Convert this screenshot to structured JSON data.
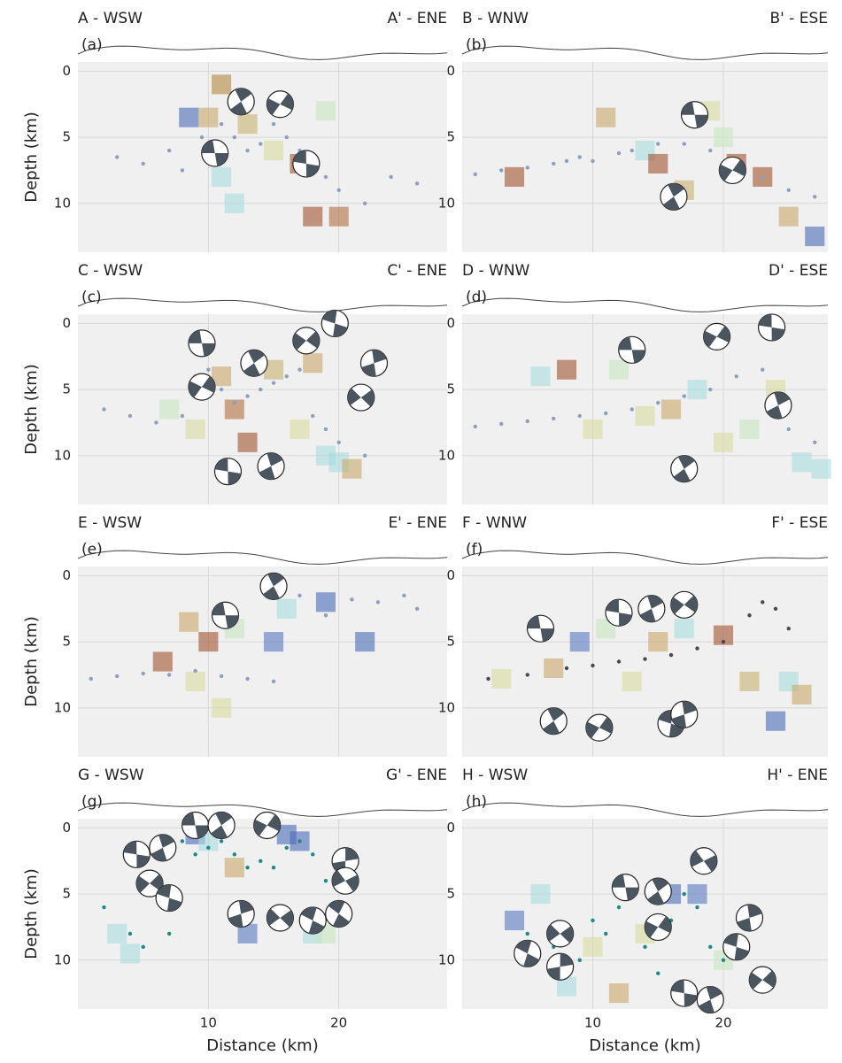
{
  "chart_data": [
    {
      "type": "scatter",
      "title_left": "A - WSW",
      "title_right": "A' - ENE",
      "panel_label": "(a)",
      "ylabel": "Depth (km)",
      "xlim": [
        0,
        28.3
      ],
      "ylim": [
        -0.7,
        13.7
      ],
      "y_inverted": true,
      "xticks": [
        10,
        20
      ],
      "yticks": [
        0,
        5,
        10
      ],
      "grid": true,
      "points": {
        "color": "#8aa0c0",
        "x": [
          3,
          5,
          7,
          8,
          9.5,
          11,
          12,
          13,
          14,
          15,
          16,
          17,
          18,
          19,
          20,
          22,
          24,
          26
        ],
        "y": [
          6.5,
          7,
          6,
          7.5,
          5,
          4,
          5,
          6,
          5.5,
          4,
          5,
          6,
          7,
          8,
          9,
          10,
          8,
          8.5
        ]
      },
      "cells": {
        "x": [
          8.5,
          10,
          11,
          13,
          15,
          17,
          18,
          20,
          12,
          11,
          19
        ],
        "y": [
          3.5,
          3.5,
          1,
          4,
          6,
          7,
          11,
          11,
          10,
          8,
          3
        ],
        "colors": [
          "#4a6ab8",
          "#c8a86a",
          "#b08840",
          "#c8b070",
          "#d8dca0",
          "#a0522d",
          "#a0522d",
          "#b07040",
          "#a8dce0",
          "#a8dce0",
          "#c8e6c0"
        ]
      },
      "mechanisms": {
        "x": [
          10.5,
          12.5,
          15.5,
          17.5
        ],
        "y": [
          6.2,
          2.3,
          2.5,
          7
        ]
      }
    },
    {
      "type": "scatter",
      "title_left": "B - WNW",
      "title_right": "B' - ESE",
      "panel_label": "(b)",
      "xlim": [
        0,
        28
      ],
      "ylim": [
        -0.7,
        13.7
      ],
      "y_inverted": true,
      "xticks": [
        10,
        20
      ],
      "yticks": [
        0,
        5,
        10
      ],
      "grid": true,
      "points": {
        "color": "#8aa0c0",
        "x": [
          1,
          3,
          5,
          7,
          8,
          9,
          10,
          12,
          13,
          15,
          17,
          19,
          21,
          23,
          25,
          27
        ],
        "y": [
          7.8,
          7.5,
          7.3,
          7,
          6.8,
          6.5,
          6.8,
          6.2,
          6,
          5.5,
          5.5,
          6,
          7,
          8,
          9,
          9.5
        ]
      },
      "cells": {
        "x": [
          4,
          11,
          14,
          15,
          17,
          19,
          21,
          23,
          25,
          27,
          20
        ],
        "y": [
          8,
          3.5,
          6,
          7,
          9,
          3,
          7,
          8,
          11,
          12.5,
          5
        ],
        "colors": [
          "#a0522d",
          "#c8a86a",
          "#a8dce0",
          "#a0522d",
          "#c8b070",
          "#d8dca0",
          "#a0522d",
          "#a0522d",
          "#c8a86a",
          "#4a6ab8",
          "#c8e6c0"
        ]
      },
      "mechanisms": {
        "x": [
          17.8,
          16.2,
          20.7
        ],
        "y": [
          3.3,
          9.5,
          7.5
        ]
      }
    },
    {
      "type": "scatter",
      "title_left": "C - WSW",
      "title_right": "C' - ENE",
      "panel_label": "(c)",
      "ylabel": "Depth (km)",
      "xlim": [
        0,
        28.3
      ],
      "ylim": [
        -0.7,
        13.7
      ],
      "y_inverted": true,
      "xticks": [
        10,
        20
      ],
      "yticks": [
        0,
        5,
        10
      ],
      "grid": true,
      "points": {
        "color": "#8aa0c0",
        "x": [
          2,
          4,
          6,
          8,
          9,
          10,
          11,
          12,
          13,
          14,
          15,
          16,
          17,
          18,
          19,
          20,
          22
        ],
        "y": [
          6.5,
          7,
          7.5,
          7,
          4,
          3.5,
          5,
          6,
          5.5,
          5,
          4.5,
          4,
          3.5,
          7,
          8,
          9,
          10
        ]
      },
      "cells": {
        "x": [
          7,
          9,
          11,
          12,
          13,
          15,
          17,
          19,
          20,
          21,
          18
        ],
        "y": [
          6.5,
          8,
          4,
          6.5,
          9,
          3.5,
          8,
          10,
          10.5,
          11,
          3
        ],
        "colors": [
          "#c8e6c0",
          "#d8dca0",
          "#c8a86a",
          "#b07040",
          "#a0522d",
          "#c8b070",
          "#d8dca0",
          "#a8dce0",
          "#a8dce0",
          "#c8a86a",
          "#c8a86a"
        ]
      },
      "mechanisms": {
        "x": [
          9.5,
          13.5,
          9.5,
          11.5,
          14.8,
          17.5,
          19.7,
          22.7,
          21.7
        ],
        "y": [
          1.5,
          3,
          4.8,
          11.2,
          10.8,
          1.3,
          0,
          3,
          5.6
        ]
      }
    },
    {
      "type": "scatter",
      "title_left": "D - WNW",
      "title_right": "D' - ESE",
      "panel_label": "(d)",
      "xlim": [
        0,
        28
      ],
      "ylim": [
        -0.7,
        13.7
      ],
      "y_inverted": true,
      "xticks": [
        10,
        20
      ],
      "yticks": [
        0,
        5,
        10
      ],
      "grid": true,
      "points": {
        "color": "#8aa0c0",
        "x": [
          1,
          3,
          5,
          7,
          9,
          11,
          13,
          15,
          17,
          19,
          21,
          23,
          25,
          27
        ],
        "y": [
          7.8,
          7.6,
          7.4,
          7.2,
          7,
          6.8,
          6.5,
          6,
          5.5,
          5,
          4,
          3.5,
          8,
          9
        ]
      },
      "cells": {
        "x": [
          6,
          8,
          10,
          12,
          14,
          16,
          18,
          20,
          22,
          24,
          26,
          27.5
        ],
        "y": [
          4,
          3.5,
          8,
          3.5,
          7,
          6.5,
          5,
          9,
          8,
          5,
          10.5,
          11
        ],
        "colors": [
          "#a8dce0",
          "#a0522d",
          "#d8dca0",
          "#c8e6c0",
          "#d8dca0",
          "#c8a86a",
          "#a8dce0",
          "#d8dca0",
          "#c8e6c0",
          "#d8dca0",
          "#a8dce0",
          "#a8dce0"
        ]
      },
      "mechanisms": {
        "x": [
          13,
          17,
          19.5,
          23.7,
          24.2
        ],
        "y": [
          2,
          11,
          1,
          0.3,
          6.2
        ]
      }
    },
    {
      "type": "scatter",
      "title_left": "E - WSW",
      "title_right": "E' - ENE",
      "panel_label": "(e)",
      "ylabel": "Depth (km)",
      "xlim": [
        0,
        28.3
      ],
      "ylim": [
        -0.7,
        13.7
      ],
      "y_inverted": true,
      "xticks": [
        10,
        20
      ],
      "yticks": [
        0,
        5,
        10
      ],
      "grid": true,
      "points": {
        "color": "#8aa0c0",
        "x": [
          1,
          3,
          5,
          7,
          9,
          11,
          13,
          15,
          17,
          19,
          21,
          23,
          25,
          26
        ],
        "y": [
          7.8,
          7.6,
          7.4,
          7.5,
          7.2,
          7.6,
          7.8,
          8,
          1.5,
          3,
          1.8,
          2,
          1.5,
          2.5
        ]
      },
      "cells": {
        "x": [
          6.5,
          8.5,
          10,
          11,
          15,
          16,
          19,
          22,
          9,
          12
        ],
        "y": [
          6.5,
          3.5,
          5,
          10,
          5,
          2.5,
          2,
          5,
          8,
          4
        ],
        "colors": [
          "#a0522d",
          "#c8a86a",
          "#a0522d",
          "#d8dca0",
          "#5878c0",
          "#a8dce0",
          "#4a6ab8",
          "#4a6ab8",
          "#d8dca0",
          "#c8e6c0"
        ]
      },
      "mechanisms": {
        "x": [
          11.3,
          15
        ],
        "y": [
          3,
          0.8
        ]
      }
    },
    {
      "type": "scatter",
      "title_left": "F - WNW",
      "title_right": "F' - ESE",
      "panel_label": "(f)",
      "xlim": [
        0,
        28
      ],
      "ylim": [
        -0.7,
        13.7
      ],
      "y_inverted": true,
      "xticks": [
        10,
        20
      ],
      "yticks": [
        0,
        5,
        10
      ],
      "grid": true,
      "points": {
        "color": "#4a4a4a",
        "x": [
          2,
          5,
          8,
          10,
          12,
          14,
          16,
          18,
          20,
          22,
          23,
          24,
          25
        ],
        "y": [
          7.8,
          7.5,
          7,
          6.8,
          6.5,
          6.3,
          6,
          5.5,
          5,
          3,
          2,
          2.5,
          4
        ]
      },
      "cells": {
        "x": [
          3,
          7,
          9,
          11,
          13,
          15,
          17,
          20,
          22,
          24,
          25,
          26
        ],
        "y": [
          7.8,
          7,
          5,
          4,
          8,
          5,
          4,
          4.5,
          8,
          11,
          8,
          9
        ],
        "colors": [
          "#d8dca0",
          "#c8a86a",
          "#5878c0",
          "#c8e6c0",
          "#d8dca0",
          "#c8a86a",
          "#a8dce0",
          "#a0522d",
          "#c8b070",
          "#4a6ab8",
          "#a8dce0",
          "#c8a86a"
        ]
      },
      "mechanisms": {
        "x": [
          6,
          7,
          10.5,
          12,
          14.5,
          17,
          16,
          17
        ],
        "y": [
          4,
          11,
          11.5,
          2.8,
          2.5,
          2.2,
          11.2,
          10.5
        ]
      }
    },
    {
      "type": "scatter",
      "title_left": "G - WSW",
      "title_right": "G' - ENE",
      "panel_label": "(g)",
      "ylabel": "Depth (km)",
      "xlabel": "Distance (km)",
      "xlim": [
        0,
        28.3
      ],
      "ylim": [
        -0.7,
        13.7
      ],
      "y_inverted": true,
      "xticks": [
        10,
        20
      ],
      "yticks": [
        0,
        5,
        10
      ],
      "grid": true,
      "points": {
        "color": "#1a8a8a",
        "x": [
          2,
          4,
          5,
          7,
          8,
          9,
          10,
          11,
          12,
          13,
          14,
          15,
          16,
          17,
          18,
          19
        ],
        "y": [
          6,
          8,
          9,
          8,
          1,
          2,
          1.5,
          1,
          2,
          3,
          2.5,
          3,
          1.5,
          1,
          2,
          4
        ]
      },
      "cells": {
        "x": [
          3,
          4,
          9,
          10,
          12,
          13,
          16,
          17,
          18,
          19
        ],
        "y": [
          8,
          9.5,
          0.5,
          1,
          3,
          8,
          0.5,
          1,
          8,
          8
        ],
        "colors": [
          "#a8dce0",
          "#a8dce0",
          "#4a6ab8",
          "#a8dce0",
          "#c8a86a",
          "#5878c0",
          "#4a6ab8",
          "#4a6ab8",
          "#a8dce0",
          "#c8e6c0"
        ]
      },
      "mechanisms": {
        "x": [
          9,
          11,
          14.5,
          4.5,
          6.5,
          5.5,
          7,
          12.5,
          15.5,
          18,
          20.5,
          20.5,
          20
        ],
        "y": [
          -0.2,
          -0.2,
          -0.2,
          2,
          1.5,
          4.2,
          5.3,
          6.5,
          6.8,
          7,
          2.5,
          4,
          6.5
        ]
      }
    },
    {
      "type": "scatter",
      "title_left": "H - WSW",
      "title_right": "H' - ENE",
      "panel_label": "(h)",
      "xlabel": "Distance (km)",
      "xlim": [
        0,
        28
      ],
      "ylim": [
        -0.7,
        13.7
      ],
      "y_inverted": true,
      "xticks": [
        10,
        20
      ],
      "yticks": [
        0,
        5,
        10
      ],
      "grid": true,
      "points": {
        "color": "#1a8a8a",
        "x": [
          5,
          7,
          9,
          10,
          11,
          12,
          13,
          14,
          15,
          16,
          17,
          18,
          19,
          20
        ],
        "y": [
          8,
          9,
          10,
          7,
          8,
          6,
          5,
          9,
          11,
          7,
          5,
          6,
          9,
          10
        ]
      },
      "cells": {
        "x": [
          4,
          6,
          8,
          10,
          12,
          14,
          16,
          18,
          20
        ],
        "y": [
          7,
          5,
          12,
          9,
          12.5,
          8,
          5,
          5,
          10
        ],
        "colors": [
          "#5878c0",
          "#a8dce0",
          "#a8dce0",
          "#d8dca0",
          "#c8a86a",
          "#d8dca0",
          "#4a6ab8",
          "#5878c0",
          "#c8e6c0"
        ]
      },
      "mechanisms": {
        "x": [
          12.5,
          15,
          15,
          17,
          19,
          23,
          21,
          22,
          7.5,
          5,
          7.5,
          18.5
        ],
        "y": [
          4.5,
          4.8,
          7.5,
          12.5,
          13,
          11.5,
          9,
          6.8,
          8,
          9.5,
          10.5,
          2.5
        ]
      }
    }
  ]
}
